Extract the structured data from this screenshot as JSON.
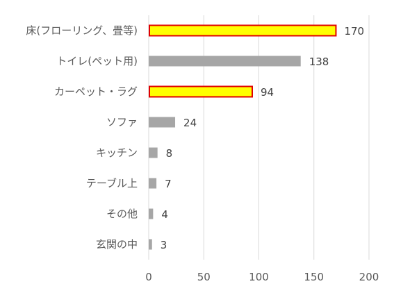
{
  "chart_data": {
    "type": "bar",
    "orientation": "horizontal",
    "categories": [
      "床(フローリング、畳等)",
      "トイレ(ペット用)",
      "カーペット・ラグ",
      "ソファ",
      "キッチン",
      "テーブル上",
      "その他",
      "玄関の中"
    ],
    "values": [
      170,
      138,
      94,
      24,
      8,
      7,
      4,
      3
    ],
    "highlighted": [
      true,
      false,
      true,
      false,
      false,
      false,
      false,
      false
    ],
    "x_ticks": [
      0,
      50,
      100,
      150,
      200
    ],
    "xlim": [
      0,
      200
    ],
    "grid": "vertical",
    "data_labels": true,
    "colors": {
      "default_bar": "#a6a6a6",
      "highlight_fill": "#ffff00",
      "highlight_border": "#e00000",
      "gridline": "#d9d9d9"
    }
  }
}
